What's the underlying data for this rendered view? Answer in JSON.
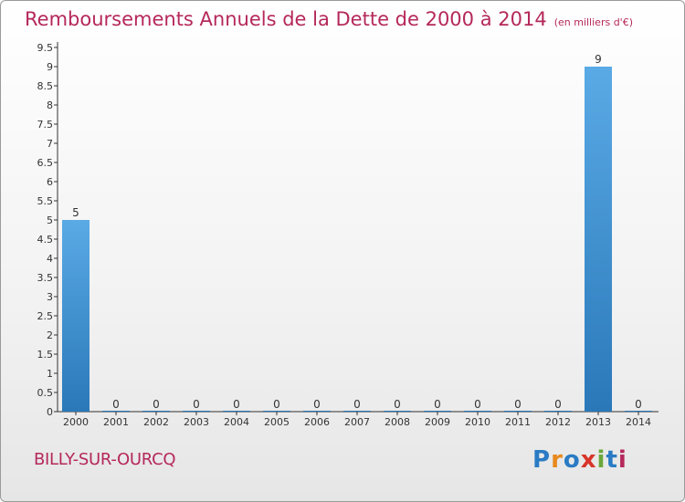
{
  "title": "Remboursements Annuels de la Dette de 2000 à 2014",
  "subtitle": "(en milliers d'€)",
  "city": "BILLY-SUR-OURCQ",
  "logo": {
    "letters": [
      "P",
      "r",
      "o",
      "x",
      "i",
      "t",
      "i"
    ],
    "colors": [
      "#2b7bc4",
      "#e8891e",
      "#2b7bc4",
      "#d8352b",
      "#6aa83b",
      "#2b7bc4",
      "#b5285a"
    ]
  },
  "colors": {
    "accent": "#b5285a",
    "bar_top": "#5aaae6",
    "bar_bottom": "#2a78b8",
    "axis": "#333333"
  },
  "chart_data": {
    "type": "bar",
    "categories": [
      "2000",
      "2001",
      "2002",
      "2003",
      "2004",
      "2005",
      "2006",
      "2007",
      "2008",
      "2009",
      "2010",
      "2011",
      "2012",
      "2013",
      "2014"
    ],
    "values": [
      5,
      0,
      0,
      0,
      0,
      0,
      0,
      0,
      0,
      0,
      0,
      0,
      0,
      9,
      0
    ],
    "data_labels": [
      "5",
      "0",
      "0",
      "0",
      "0",
      "0",
      "0",
      "0",
      "0",
      "0",
      "0",
      "0",
      "0",
      "9",
      "0"
    ],
    "ylim": [
      0,
      9.5
    ],
    "yticks": [
      "0",
      "0.5",
      "1",
      "1.5",
      "2",
      "2.5",
      "3",
      "3.5",
      "4",
      "4.5",
      "5",
      "5.5",
      "6",
      "6.5",
      "7",
      "7.5",
      "8",
      "8.5",
      "9",
      "9.5"
    ],
    "xlabel": "",
    "ylabel": "",
    "grid": false,
    "legend": "none"
  }
}
